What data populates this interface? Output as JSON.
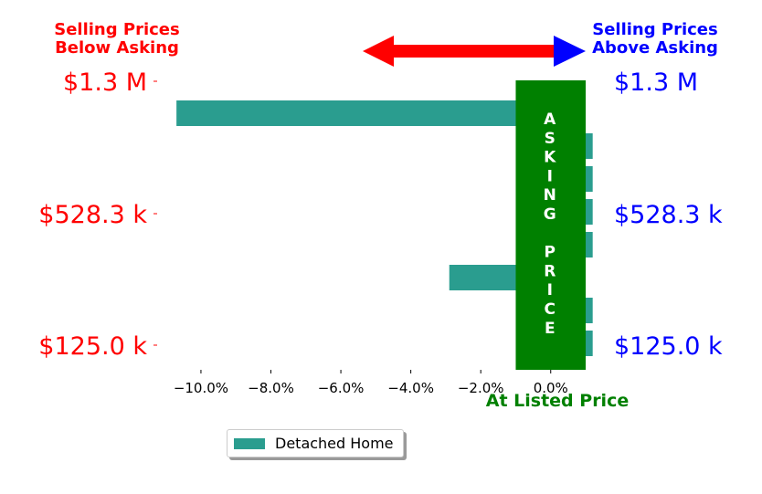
{
  "chart_data": {
    "type": "bar",
    "orientation": "horizontal",
    "x_unit": "percent",
    "xlim": [
      -11.2,
      1.6
    ],
    "x_ticks": [
      -10.0,
      -8.0,
      -6.0,
      -4.0,
      -2.0,
      0.0
    ],
    "x_tick_labels": [
      "−10.0%",
      "−8.0%",
      "−6.0%",
      "−4.0%",
      "−2.0%",
      "0.0%"
    ],
    "price_tick_labels": [
      "$1.3 M",
      "$528.3 k",
      "$125.0 k"
    ],
    "categories": [
      "1",
      "2",
      "3",
      "4",
      "5",
      "6",
      "7",
      "8"
    ],
    "series": [
      {
        "name": "Detached Home",
        "color": "#2a9d8f",
        "values": [
          -10.7,
          1.2,
          1.2,
          1.2,
          1.2,
          -2.9,
          1.2,
          1.2
        ]
      }
    ],
    "asking_band": {
      "range": [
        -1.0,
        1.0
      ],
      "color": "#008000",
      "text_color": "#ffffff",
      "letters": [
        "A",
        "S",
        "K",
        "I",
        "N",
        "G",
        "",
        "P",
        "R",
        "I",
        "C",
        "E"
      ]
    },
    "left_heading": [
      "Selling Prices",
      "Below Asking"
    ],
    "right_heading": [
      "Selling Prices",
      "Above Asking"
    ],
    "bottom_label": "At Listed Price",
    "colors": {
      "below": "#ff0000",
      "above": "#0000ff",
      "at": "#008000"
    },
    "legend": {
      "placement": "bottom-center"
    },
    "grid": false
  }
}
